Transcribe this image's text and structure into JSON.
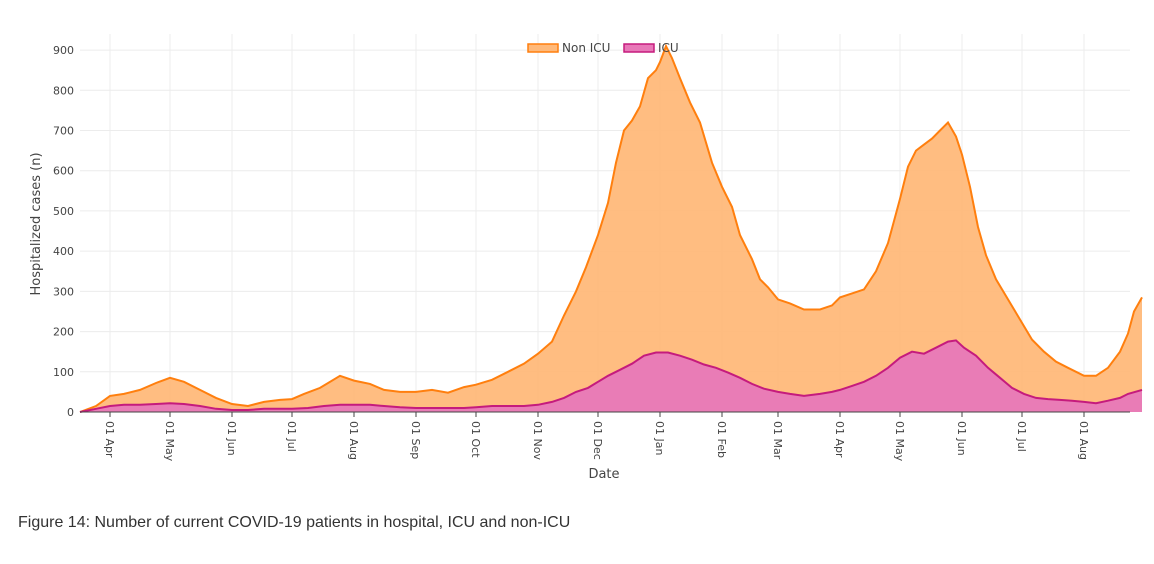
{
  "chart_data": {
    "type": "area",
    "title": "",
    "xlabel": "Date",
    "ylabel": "Hospitalized cases (n)",
    "ylim": [
      0,
      940
    ],
    "yticks": [
      0,
      100,
      200,
      300,
      400,
      500,
      600,
      700,
      800,
      900
    ],
    "x_ticks": [
      {
        "day": 15,
        "label": "01 Apr"
      },
      {
        "day": 45,
        "label": "01 May"
      },
      {
        "day": 76,
        "label": "01 Jun"
      },
      {
        "day": 106,
        "label": "01 Jul"
      },
      {
        "day": 137,
        "label": "01 Aug"
      },
      {
        "day": 168,
        "label": "01 Sep"
      },
      {
        "day": 198,
        "label": "01 Oct"
      },
      {
        "day": 229,
        "label": "01 Nov"
      },
      {
        "day": 259,
        "label": "01 Dec"
      },
      {
        "day": 290,
        "label": "01 Jan"
      },
      {
        "day": 321,
        "label": "01 Feb"
      },
      {
        "day": 349,
        "label": "01 Mar"
      },
      {
        "day": 380,
        "label": "01 Apr"
      },
      {
        "day": 410,
        "label": "01 May"
      },
      {
        "day": 441,
        "label": "01 Jun"
      },
      {
        "day": 471,
        "label": "01 Jul"
      },
      {
        "day": 502,
        "label": "01 Aug"
      }
    ],
    "x_range": [
      0,
      525
    ],
    "series": [
      {
        "name": "Non ICU",
        "color": "#ff7f0e",
        "fill": "#ffb97a",
        "points": [
          [
            0,
            0
          ],
          [
            8,
            15
          ],
          [
            15,
            40
          ],
          [
            22,
            45
          ],
          [
            30,
            55
          ],
          [
            38,
            72
          ],
          [
            45,
            85
          ],
          [
            52,
            75
          ],
          [
            60,
            55
          ],
          [
            68,
            35
          ],
          [
            76,
            20
          ],
          [
            84,
            15
          ],
          [
            92,
            25
          ],
          [
            100,
            30
          ],
          [
            106,
            32
          ],
          [
            112,
            45
          ],
          [
            120,
            60
          ],
          [
            130,
            90
          ],
          [
            137,
            78
          ],
          [
            145,
            70
          ],
          [
            152,
            55
          ],
          [
            160,
            50
          ],
          [
            168,
            50
          ],
          [
            176,
            55
          ],
          [
            184,
            48
          ],
          [
            192,
            62
          ],
          [
            198,
            68
          ],
          [
            206,
            80
          ],
          [
            214,
            100
          ],
          [
            222,
            120
          ],
          [
            229,
            145
          ],
          [
            236,
            175
          ],
          [
            242,
            240
          ],
          [
            248,
            300
          ],
          [
            253,
            360
          ],
          [
            259,
            440
          ],
          [
            264,
            520
          ],
          [
            268,
            620
          ],
          [
            272,
            700
          ],
          [
            276,
            725
          ],
          [
            280,
            760
          ],
          [
            284,
            830
          ],
          [
            288,
            850
          ],
          [
            290,
            870
          ],
          [
            293,
            910
          ],
          [
            296,
            880
          ],
          [
            300,
            830
          ],
          [
            305,
            770
          ],
          [
            310,
            720
          ],
          [
            316,
            620
          ],
          [
            321,
            560
          ],
          [
            326,
            510
          ],
          [
            330,
            440
          ],
          [
            336,
            380
          ],
          [
            340,
            330
          ],
          [
            344,
            310
          ],
          [
            349,
            280
          ],
          [
            355,
            270
          ],
          [
            362,
            255
          ],
          [
            370,
            255
          ],
          [
            376,
            265
          ],
          [
            380,
            285
          ],
          [
            386,
            295
          ],
          [
            392,
            305
          ],
          [
            398,
            350
          ],
          [
            404,
            420
          ],
          [
            410,
            530
          ],
          [
            414,
            610
          ],
          [
            418,
            650
          ],
          [
            422,
            665
          ],
          [
            426,
            680
          ],
          [
            430,
            700
          ],
          [
            434,
            720
          ],
          [
            438,
            685
          ],
          [
            441,
            640
          ],
          [
            445,
            560
          ],
          [
            449,
            460
          ],
          [
            453,
            390
          ],
          [
            458,
            330
          ],
          [
            464,
            280
          ],
          [
            470,
            230
          ],
          [
            476,
            180
          ],
          [
            482,
            150
          ],
          [
            488,
            125
          ],
          [
            494,
            110
          ],
          [
            502,
            90
          ],
          [
            508,
            90
          ],
          [
            514,
            110
          ],
          [
            520,
            150
          ],
          [
            524,
            195
          ],
          [
            527,
            250
          ],
          [
            531,
            285
          ]
        ]
      },
      {
        "name": "ICU",
        "color": "#c51b7d",
        "fill": "#e878b8",
        "points": [
          [
            0,
            0
          ],
          [
            8,
            8
          ],
          [
            15,
            15
          ],
          [
            22,
            18
          ],
          [
            30,
            18
          ],
          [
            38,
            20
          ],
          [
            45,
            22
          ],
          [
            52,
            20
          ],
          [
            60,
            15
          ],
          [
            68,
            8
          ],
          [
            76,
            5
          ],
          [
            84,
            5
          ],
          [
            92,
            8
          ],
          [
            100,
            8
          ],
          [
            106,
            8
          ],
          [
            114,
            10
          ],
          [
            122,
            15
          ],
          [
            130,
            18
          ],
          [
            137,
            18
          ],
          [
            145,
            18
          ],
          [
            152,
            15
          ],
          [
            160,
            12
          ],
          [
            168,
            10
          ],
          [
            176,
            10
          ],
          [
            184,
            10
          ],
          [
            192,
            10
          ],
          [
            198,
            12
          ],
          [
            206,
            15
          ],
          [
            214,
            15
          ],
          [
            222,
            15
          ],
          [
            229,
            18
          ],
          [
            236,
            25
          ],
          [
            242,
            35
          ],
          [
            248,
            50
          ],
          [
            254,
            60
          ],
          [
            259,
            75
          ],
          [
            264,
            90
          ],
          [
            270,
            105
          ],
          [
            276,
            120
          ],
          [
            282,
            140
          ],
          [
            288,
            148
          ],
          [
            294,
            148
          ],
          [
            300,
            140
          ],
          [
            306,
            130
          ],
          [
            312,
            118
          ],
          [
            318,
            110
          ],
          [
            324,
            98
          ],
          [
            330,
            85
          ],
          [
            336,
            70
          ],
          [
            342,
            58
          ],
          [
            349,
            50
          ],
          [
            355,
            45
          ],
          [
            362,
            40
          ],
          [
            370,
            45
          ],
          [
            376,
            50
          ],
          [
            380,
            55
          ],
          [
            386,
            65
          ],
          [
            392,
            75
          ],
          [
            398,
            90
          ],
          [
            404,
            110
          ],
          [
            410,
            135
          ],
          [
            416,
            150
          ],
          [
            422,
            145
          ],
          [
            428,
            160
          ],
          [
            434,
            175
          ],
          [
            438,
            178
          ],
          [
            442,
            160
          ],
          [
            448,
            140
          ],
          [
            454,
            110
          ],
          [
            460,
            85
          ],
          [
            466,
            60
          ],
          [
            472,
            45
          ],
          [
            478,
            35
          ],
          [
            484,
            32
          ],
          [
            490,
            30
          ],
          [
            496,
            28
          ],
          [
            502,
            25
          ],
          [
            508,
            22
          ],
          [
            514,
            28
          ],
          [
            520,
            35
          ],
          [
            524,
            45
          ],
          [
            531,
            55
          ]
        ]
      }
    ]
  },
  "caption": "Figure 14: Number of current COVID-19 patients in hospital, ICU and non-ICU"
}
